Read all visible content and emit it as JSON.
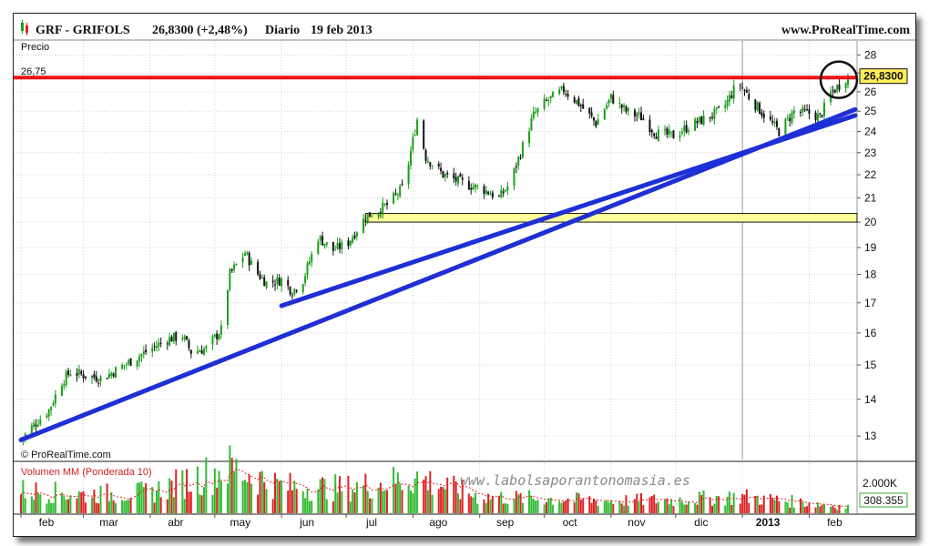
{
  "header": {
    "symbol": "GRF - GRIFOLS",
    "last_price": "26,8300 (+2,48%)",
    "period": "Diario",
    "date": "19 feb 2013",
    "site": "www.ProRealTime.com"
  },
  "price_panel": {
    "label": "Precio",
    "copyright": "© ProRealTime.com",
    "resistance_label": "26,75",
    "current_price_badge": "26,8300"
  },
  "volume_panel": {
    "label": "Volumen MM (Ponderada 10)",
    "watermark": "www.labolsaporantonomasia.es",
    "axis_label": "2.000K",
    "value_badge": "308.355"
  },
  "colors": {
    "up_candle": "#1a9e1a",
    "down_candle": "#111111",
    "resistance": "#ee1111",
    "trendline": "#1f2fd6",
    "support_zone": "#ffff99",
    "badge": "#ffee55",
    "volume_up": "#33bb33",
    "volume_down": "#dd2222",
    "volume_ma": "#dd2222"
  },
  "chart_data": [
    {
      "type": "candlestick",
      "title": "GRF - GRIFOLS",
      "ylabel": "Precio",
      "scale": "log",
      "ylim": [
        12.4,
        28.8
      ],
      "yticks": [
        13,
        14,
        15,
        16,
        17,
        18,
        19,
        20,
        21,
        22,
        23,
        24,
        25,
        26,
        27,
        28
      ],
      "x_months": [
        "feb",
        "mar",
        "abr",
        "may",
        "jun",
        "jul",
        "ago",
        "sep",
        "oct",
        "nov",
        "dic",
        "2013",
        "feb"
      ],
      "x_range": [
        "2012-02-01",
        "2013-02-19"
      ],
      "grid": true,
      "close_path": [
        [
          "2012-02-01",
          12.9
        ],
        [
          "2012-02-07",
          13.3
        ],
        [
          "2012-02-14",
          13.7
        ],
        [
          "2012-02-20",
          14.5
        ],
        [
          "2012-02-24",
          14.8
        ],
        [
          "2012-03-01",
          14.7
        ],
        [
          "2012-03-10",
          14.6
        ],
        [
          "2012-03-20",
          15.0
        ],
        [
          "2012-03-30",
          15.4
        ],
        [
          "2012-04-09",
          15.8
        ],
        [
          "2012-04-16",
          15.9
        ],
        [
          "2012-04-20",
          15.4
        ],
        [
          "2012-04-27",
          15.5
        ],
        [
          "2012-05-04",
          16.1
        ],
        [
          "2012-05-08",
          18.0
        ],
        [
          "2012-05-15",
          18.8
        ],
        [
          "2012-05-20",
          18.1
        ],
        [
          "2012-05-25",
          17.7
        ],
        [
          "2012-06-01",
          17.8
        ],
        [
          "2012-06-06",
          17.4
        ],
        [
          "2012-06-11",
          17.8
        ],
        [
          "2012-06-18",
          19.4
        ],
        [
          "2012-06-25",
          18.9
        ],
        [
          "2012-07-02",
          19.2
        ],
        [
          "2012-07-10",
          20.2
        ],
        [
          "2012-07-20",
          20.7
        ],
        [
          "2012-07-28",
          21.5
        ],
        [
          "2012-08-03",
          24.6
        ],
        [
          "2012-08-07",
          22.8
        ],
        [
          "2012-08-15",
          22.0
        ],
        [
          "2012-08-25",
          21.6
        ],
        [
          "2012-09-02",
          21.4
        ],
        [
          "2012-09-10",
          21.0
        ],
        [
          "2012-09-15",
          21.6
        ],
        [
          "2012-09-20",
          23.0
        ],
        [
          "2012-09-26",
          24.8
        ],
        [
          "2012-10-02",
          25.5
        ],
        [
          "2012-10-10",
          26.1
        ],
        [
          "2012-10-17",
          25.4
        ],
        [
          "2012-10-25",
          24.4
        ],
        [
          "2012-11-01",
          25.7
        ],
        [
          "2012-11-08",
          25.0
        ],
        [
          "2012-11-15",
          24.7
        ],
        [
          "2012-11-22",
          23.9
        ],
        [
          "2012-11-30",
          23.8
        ],
        [
          "2012-12-08",
          24.3
        ],
        [
          "2012-12-16",
          24.7
        ],
        [
          "2012-12-23",
          25.1
        ],
        [
          "2012-12-30",
          26.5
        ],
        [
          "2013-01-05",
          25.6
        ],
        [
          "2013-01-12",
          24.7
        ],
        [
          "2013-01-18",
          24.0
        ],
        [
          "2013-01-25",
          25.0
        ],
        [
          "2013-02-01",
          24.9
        ],
        [
          "2013-02-06",
          24.7
        ],
        [
          "2013-02-11",
          25.9
        ],
        [
          "2013-02-19",
          26.83
        ]
      ],
      "resistance_level": 26.75,
      "support_zone": [
        20.0,
        20.35
      ],
      "trendlines": [
        {
          "from": [
            "2012-02-01",
            12.9
          ],
          "to": [
            "2013-02-19",
            25.0
          ]
        },
        {
          "from": [
            "2012-06-01",
            16.9
          ],
          "to": [
            "2013-02-19",
            24.7
          ]
        }
      ],
      "current_price": 26.83,
      "change": "+2,48%"
    },
    {
      "type": "bar",
      "ylabel": "Volumen MM (Ponderada 10)",
      "unit": "shares",
      "yticks": [
        "2.000K"
      ],
      "last_value": 308355,
      "volume_path": [
        [
          "2012-02-01",
          1100000
        ],
        [
          "2012-03-01",
          900000
        ],
        [
          "2012-04-01",
          1000000
        ],
        [
          "2012-05-08",
          2200000
        ],
        [
          "2012-06-01",
          1300000
        ],
        [
          "2012-07-01",
          1200000
        ],
        [
          "2012-08-03",
          1700000
        ],
        [
          "2012-09-01",
          800000
        ],
        [
          "2012-10-01",
          700000
        ],
        [
          "2012-11-01",
          600000
        ],
        [
          "2012-12-01",
          650000
        ],
        [
          "2013-01-01",
          800000
        ],
        [
          "2013-02-19",
          308355
        ]
      ]
    }
  ]
}
